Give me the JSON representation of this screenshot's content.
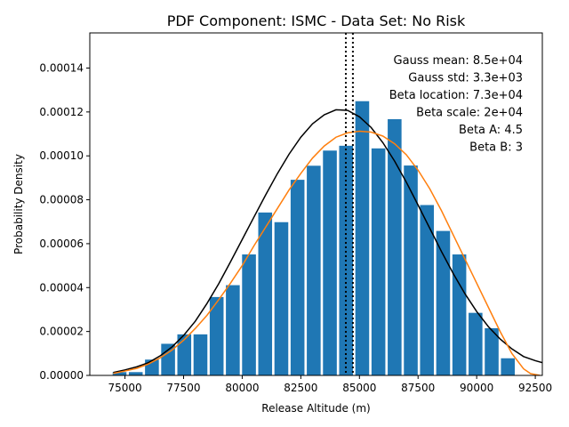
{
  "chart_data": {
    "type": "bar",
    "title": "PDF Component: ISMC - Data Set: No Risk",
    "xlabel": "Release Altitude (m)",
    "ylabel": "Probability Density",
    "xlim": [
      73500,
      92800
    ],
    "ylim": [
      0,
      0.000156
    ],
    "x_ticks": [
      75000,
      77500,
      80000,
      82500,
      85000,
      87500,
      90000,
      92500
    ],
    "x_tick_labels": [
      "75000",
      "77500",
      "80000",
      "82500",
      "85000",
      "87500",
      "90000",
      "92500"
    ],
    "y_ticks": [
      0,
      2e-05,
      4e-05,
      6e-05,
      8e-05,
      0.0001,
      0.00012,
      0.00014
    ],
    "y_tick_labels": [
      "0.00000",
      "0.00002",
      "0.00004",
      "0.00006",
      "0.00008",
      "0.00010",
      "0.00012",
      "0.00014"
    ],
    "bar_color": "#1f77b4",
    "bar_width": 590,
    "bars": {
      "x": [
        74770,
        75460,
        76150,
        76840,
        77530,
        78220,
        78910,
        79600,
        80290,
        80980,
        81670,
        82360,
        83050,
        83740,
        84430,
        85120,
        85810,
        86500,
        87190,
        87880,
        88570,
        89260,
        89950,
        90640,
        91330,
        92020
      ],
      "values": [
        1.5e-06,
        1.5e-06,
        7.2e-06,
        1.44e-05,
        1.87e-05,
        1.87e-05,
        3.57e-05,
        4.11e-05,
        5.51e-05,
        7.42e-05,
        6.98e-05,
        8.91e-05,
        9.55e-05,
        0.0001024,
        0.0001046,
        0.0001249,
        0.0001034,
        0.0001167,
        9.56e-05,
        7.76e-05,
        6.58e-05,
        5.51e-05,
        2.85e-05,
        2.15e-05,
        7.8e-06,
        0.0
      ]
    },
    "series": [
      {
        "kind": "gauss",
        "color": "#000000",
        "x": [
          74500,
          75000,
          75500,
          76000,
          76500,
          77000,
          77500,
          78000,
          78500,
          79000,
          79500,
          80000,
          80500,
          81000,
          81500,
          82000,
          82500,
          83000,
          83500,
          84000,
          84500,
          85000,
          85500,
          86000,
          86500,
          87000,
          87500,
          88000,
          88500,
          89000,
          89500,
          90000,
          90500,
          91000,
          91500,
          92000,
          92500,
          92800
        ],
        "y": [
          1.3e-06,
          2.5e-06,
          3.9e-06,
          5.8e-06,
          8.9e-06,
          1.29e-05,
          1.82e-05,
          2.47e-05,
          3.28e-05,
          4.18e-05,
          5.17e-05,
          6.19e-05,
          7.21e-05,
          8.22e-05,
          9.19e-05,
          0.0001008,
          0.0001085,
          0.0001146,
          0.0001187,
          0.000121,
          0.0001207,
          0.0001178,
          0.0001129,
          0.000106,
          9.76e-05,
          8.8e-05,
          7.76e-05,
          6.7e-05,
          5.64e-05,
          4.64e-05,
          3.72e-05,
          2.91e-05,
          2.22e-05,
          1.66e-05,
          1.21e-05,
          8.6e-06,
          6.7e-06,
          5.8e-06
        ]
      },
      {
        "kind": "beta",
        "color": "#ff7f0e",
        "x": [
          74500,
          75000,
          75500,
          76000,
          76500,
          77000,
          77500,
          78000,
          78500,
          79000,
          79500,
          80000,
          80500,
          81000,
          81500,
          82000,
          82500,
          83000,
          83500,
          84000,
          84500,
          85000,
          85500,
          86000,
          86500,
          87000,
          87500,
          88000,
          88500,
          89000,
          89500,
          90000,
          90500,
          91000,
          91500,
          92000,
          92300,
          92700
        ],
        "y": [
          9e-07,
          2e-06,
          3.2e-06,
          5.2e-06,
          8e-06,
          1.15e-05,
          1.6e-05,
          2.14e-05,
          2.74e-05,
          3.45e-05,
          4.2e-05,
          5e-05,
          5.9e-05,
          6.75e-05,
          7.6e-05,
          8.45e-05,
          9.2e-05,
          9.9e-05,
          0.0001045,
          0.0001085,
          0.0001105,
          0.0001112,
          0.0001108,
          0.000109,
          0.0001055,
          0.0001005,
          9.35e-05,
          8.5e-05,
          7.5e-05,
          6.4e-05,
          5.3e-05,
          4.2e-05,
          3.1e-05,
          2e-05,
          1e-05,
          3e-06,
          8e-07,
          0.0
        ]
      }
    ],
    "vlines": {
      "x": [
        84420,
        84720
      ],
      "style": "dotted",
      "color": "#000000"
    },
    "annotations": [
      "Gauss mean: 8.5e+04",
      "Gauss std: 3.3e+03",
      "Beta location: 7.3e+04",
      "Beta scale: 2e+04",
      "Beta A: 4.5",
      "Beta B: 3"
    ],
    "annotation_placement": "top-right",
    "grid": false,
    "legend": null
  }
}
